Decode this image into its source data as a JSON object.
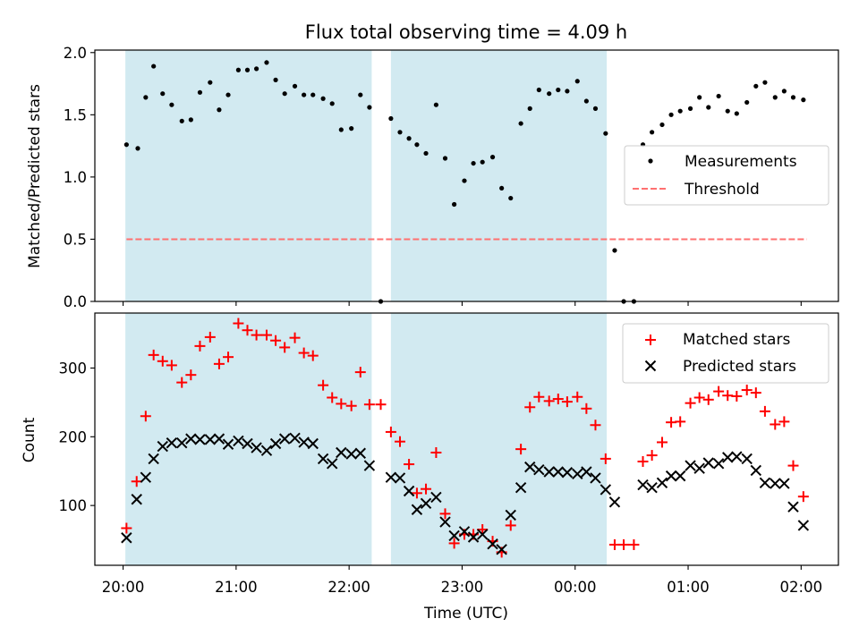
{
  "title": "Flux total observing time = 4.09 h",
  "colors": {
    "shade": "#add8e6",
    "matched": "#ff0000",
    "predicted": "#000000",
    "threshold": "#ff7070",
    "measurement": "#000000"
  },
  "chart_data": [
    {
      "type": "scatter",
      "panel": "top",
      "ylabel": "Matched/Predicted stars",
      "xlabel": "",
      "xlim": [
        19.75,
        26.33
      ],
      "ylim": [
        0,
        2.02
      ],
      "yticks": [
        0.0,
        0.5,
        1.0,
        1.5,
        2.0
      ],
      "ytick_labels": [
        "0.0",
        "0.5",
        "1.0",
        "1.5",
        "2.0"
      ],
      "grid": false,
      "legend_position": "center-right",
      "shaded_intervals": [
        [
          20.02,
          22.2
        ],
        [
          22.37,
          24.28
        ]
      ],
      "series": [
        {
          "name": "Measurements",
          "marker": "dot",
          "points": [
            [
              20.03,
              1.26
            ],
            [
              20.13,
              1.23
            ],
            [
              20.2,
              1.64
            ],
            [
              20.27,
              1.89
            ],
            [
              20.35,
              1.67
            ],
            [
              20.43,
              1.58
            ],
            [
              20.52,
              1.45
            ],
            [
              20.6,
              1.46
            ],
            [
              20.68,
              1.68
            ],
            [
              20.77,
              1.76
            ],
            [
              20.85,
              1.54
            ],
            [
              20.93,
              1.66
            ],
            [
              21.02,
              1.86
            ],
            [
              21.1,
              1.86
            ],
            [
              21.18,
              1.87
            ],
            [
              21.27,
              1.92
            ],
            [
              21.35,
              1.78
            ],
            [
              21.43,
              1.67
            ],
            [
              21.52,
              1.73
            ],
            [
              21.6,
              1.66
            ],
            [
              21.68,
              1.66
            ],
            [
              21.77,
              1.63
            ],
            [
              21.85,
              1.59
            ],
            [
              21.93,
              1.38
            ],
            [
              22.02,
              1.39
            ],
            [
              22.1,
              1.66
            ],
            [
              22.18,
              1.56
            ],
            [
              22.28,
              0.0
            ],
            [
              22.37,
              1.47
            ],
            [
              22.45,
              1.36
            ],
            [
              22.53,
              1.31
            ],
            [
              22.6,
              1.26
            ],
            [
              22.68,
              1.19
            ],
            [
              22.77,
              1.58
            ],
            [
              22.85,
              1.15
            ],
            [
              22.93,
              0.78
            ],
            [
              23.02,
              0.97
            ],
            [
              23.1,
              1.11
            ],
            [
              23.18,
              1.12
            ],
            [
              23.27,
              1.16
            ],
            [
              23.35,
              0.91
            ],
            [
              23.43,
              0.83
            ],
            [
              23.52,
              1.43
            ],
            [
              23.6,
              1.55
            ],
            [
              23.68,
              1.7
            ],
            [
              23.77,
              1.67
            ],
            [
              23.85,
              1.7
            ],
            [
              23.93,
              1.69
            ],
            [
              24.02,
              1.77
            ],
            [
              24.1,
              1.61
            ],
            [
              24.18,
              1.55
            ],
            [
              24.27,
              1.35
            ],
            [
              24.35,
              0.41
            ],
            [
              24.43,
              0.0
            ],
            [
              24.52,
              0.0
            ],
            [
              24.6,
              1.26
            ],
            [
              24.68,
              1.36
            ],
            [
              24.77,
              1.42
            ],
            [
              24.85,
              1.5
            ],
            [
              24.93,
              1.53
            ],
            [
              25.02,
              1.55
            ],
            [
              25.1,
              1.64
            ],
            [
              25.18,
              1.56
            ],
            [
              25.27,
              1.65
            ],
            [
              25.35,
              1.53
            ],
            [
              25.43,
              1.51
            ],
            [
              25.52,
              1.6
            ],
            [
              25.6,
              1.73
            ],
            [
              25.68,
              1.76
            ],
            [
              25.77,
              1.64
            ],
            [
              25.85,
              1.69
            ],
            [
              25.93,
              1.64
            ],
            [
              26.02,
              1.62
            ]
          ]
        },
        {
          "name": "Threshold",
          "marker": "dashed-line",
          "points": [
            [
              20.03,
              0.5
            ],
            [
              26.05,
              0.5
            ]
          ]
        }
      ]
    },
    {
      "type": "scatter",
      "panel": "bottom",
      "ylabel": "Count",
      "xlabel": "Time (UTC)",
      "xlim": [
        19.75,
        26.33
      ],
      "ylim": [
        13,
        380
      ],
      "yticks": [
        100,
        200,
        300
      ],
      "ytick_labels": [
        "100",
        "200",
        "300"
      ],
      "xticks": [
        20,
        21,
        22,
        23,
        24,
        25,
        26
      ],
      "xtick_labels": [
        "20:00",
        "21:00",
        "22:00",
        "23:00",
        "00:00",
        "01:00",
        "02:00"
      ],
      "grid": false,
      "legend_position": "top-right",
      "shaded_intervals": [
        [
          20.02,
          22.2
        ],
        [
          22.37,
          24.28
        ]
      ],
      "series": [
        {
          "name": "Matched stars",
          "marker": "plus",
          "points": [
            [
              20.03,
              67
            ],
            [
              20.12,
              135
            ],
            [
              20.2,
              230
            ],
            [
              20.27,
              319
            ],
            [
              20.35,
              310
            ],
            [
              20.43,
              304
            ],
            [
              20.52,
              279
            ],
            [
              20.6,
              290
            ],
            [
              20.68,
              332
            ],
            [
              20.77,
              345
            ],
            [
              20.85,
              306
            ],
            [
              20.93,
              316
            ],
            [
              21.02,
              365
            ],
            [
              21.1,
              355
            ],
            [
              21.18,
              348
            ],
            [
              21.27,
              348
            ],
            [
              21.35,
              340
            ],
            [
              21.43,
              330
            ],
            [
              21.52,
              344
            ],
            [
              21.6,
              322
            ],
            [
              21.68,
              318
            ],
            [
              21.77,
              275
            ],
            [
              21.85,
              257
            ],
            [
              21.93,
              248
            ],
            [
              22.02,
              245
            ],
            [
              22.1,
              294
            ],
            [
              22.18,
              247
            ],
            [
              22.28,
              247
            ],
            [
              22.37,
              207
            ],
            [
              22.45,
              193
            ],
            [
              22.53,
              160
            ],
            [
              22.6,
              118
            ],
            [
              22.68,
              124
            ],
            [
              22.77,
              177
            ],
            [
              22.85,
              88
            ],
            [
              22.93,
              45
            ],
            [
              23.02,
              58
            ],
            [
              23.1,
              58
            ],
            [
              23.18,
              65
            ],
            [
              23.27,
              48
            ],
            [
              23.35,
              32
            ],
            [
              23.43,
              71
            ],
            [
              23.52,
              182
            ],
            [
              23.6,
              243
            ],
            [
              23.68,
              258
            ],
            [
              23.77,
              252
            ],
            [
              23.85,
              255
            ],
            [
              23.93,
              251
            ],
            [
              24.02,
              258
            ],
            [
              24.1,
              241
            ],
            [
              24.18,
              217
            ],
            [
              24.27,
              168
            ],
            [
              24.35,
              43
            ],
            [
              24.43,
              43
            ],
            [
              24.52,
              43
            ],
            [
              24.6,
              164
            ],
            [
              24.68,
              173
            ],
            [
              24.77,
              192
            ],
            [
              24.85,
              221
            ],
            [
              24.93,
              222
            ],
            [
              25.02,
              249
            ],
            [
              25.1,
              257
            ],
            [
              25.18,
              254
            ],
            [
              25.27,
              266
            ],
            [
              25.35,
              260
            ],
            [
              25.43,
              259
            ],
            [
              25.52,
              268
            ],
            [
              25.6,
              264
            ],
            [
              25.68,
              237
            ],
            [
              25.77,
              218
            ],
            [
              25.85,
              222
            ],
            [
              25.93,
              158
            ],
            [
              26.02,
              113
            ]
          ]
        },
        {
          "name": "Predicted stars",
          "marker": "x",
          "points": [
            [
              20.03,
              53
            ],
            [
              20.12,
              109
            ],
            [
              20.2,
              141
            ],
            [
              20.27,
              168
            ],
            [
              20.35,
              186
            ],
            [
              20.43,
              191
            ],
            [
              20.52,
              191
            ],
            [
              20.6,
              197
            ],
            [
              20.68,
              196
            ],
            [
              20.77,
              196
            ],
            [
              20.85,
              197
            ],
            [
              20.93,
              189
            ],
            [
              21.02,
              194
            ],
            [
              21.1,
              190
            ],
            [
              21.18,
              184
            ],
            [
              21.27,
              180
            ],
            [
              21.35,
              190
            ],
            [
              21.43,
              197
            ],
            [
              21.52,
              198
            ],
            [
              21.6,
              192
            ],
            [
              21.68,
              190
            ],
            [
              21.77,
              168
            ],
            [
              21.85,
              161
            ],
            [
              21.93,
              177
            ],
            [
              22.02,
              175
            ],
            [
              22.1,
              176
            ],
            [
              22.18,
              158
            ],
            [
              22.37,
              141
            ],
            [
              22.45,
              140
            ],
            [
              22.53,
              121
            ],
            [
              22.6,
              94
            ],
            [
              22.68,
              103
            ],
            [
              22.77,
              112
            ],
            [
              22.85,
              76
            ],
            [
              22.93,
              56
            ],
            [
              23.02,
              62
            ],
            [
              23.1,
              54
            ],
            [
              23.18,
              58
            ],
            [
              23.27,
              44
            ],
            [
              23.35,
              36
            ],
            [
              23.43,
              86
            ],
            [
              23.52,
              126
            ],
            [
              23.6,
              156
            ],
            [
              23.68,
              152
            ],
            [
              23.77,
              149
            ],
            [
              23.85,
              149
            ],
            [
              23.93,
              148
            ],
            [
              24.02,
              146
            ],
            [
              24.1,
              149
            ],
            [
              24.18,
              140
            ],
            [
              24.27,
              123
            ],
            [
              24.35,
              105
            ],
            [
              24.6,
              130
            ],
            [
              24.68,
              126
            ],
            [
              24.77,
              133
            ],
            [
              24.85,
              143
            ],
            [
              24.93,
              143
            ],
            [
              25.02,
              158
            ],
            [
              25.1,
              154
            ],
            [
              25.18,
              162
            ],
            [
              25.27,
              161
            ],
            [
              25.35,
              170
            ],
            [
              25.43,
              171
            ],
            [
              25.52,
              168
            ],
            [
              25.6,
              151
            ],
            [
              25.68,
              133
            ],
            [
              25.77,
              132
            ],
            [
              25.85,
              132
            ],
            [
              25.93,
              98
            ],
            [
              26.02,
              71
            ]
          ]
        }
      ]
    }
  ]
}
